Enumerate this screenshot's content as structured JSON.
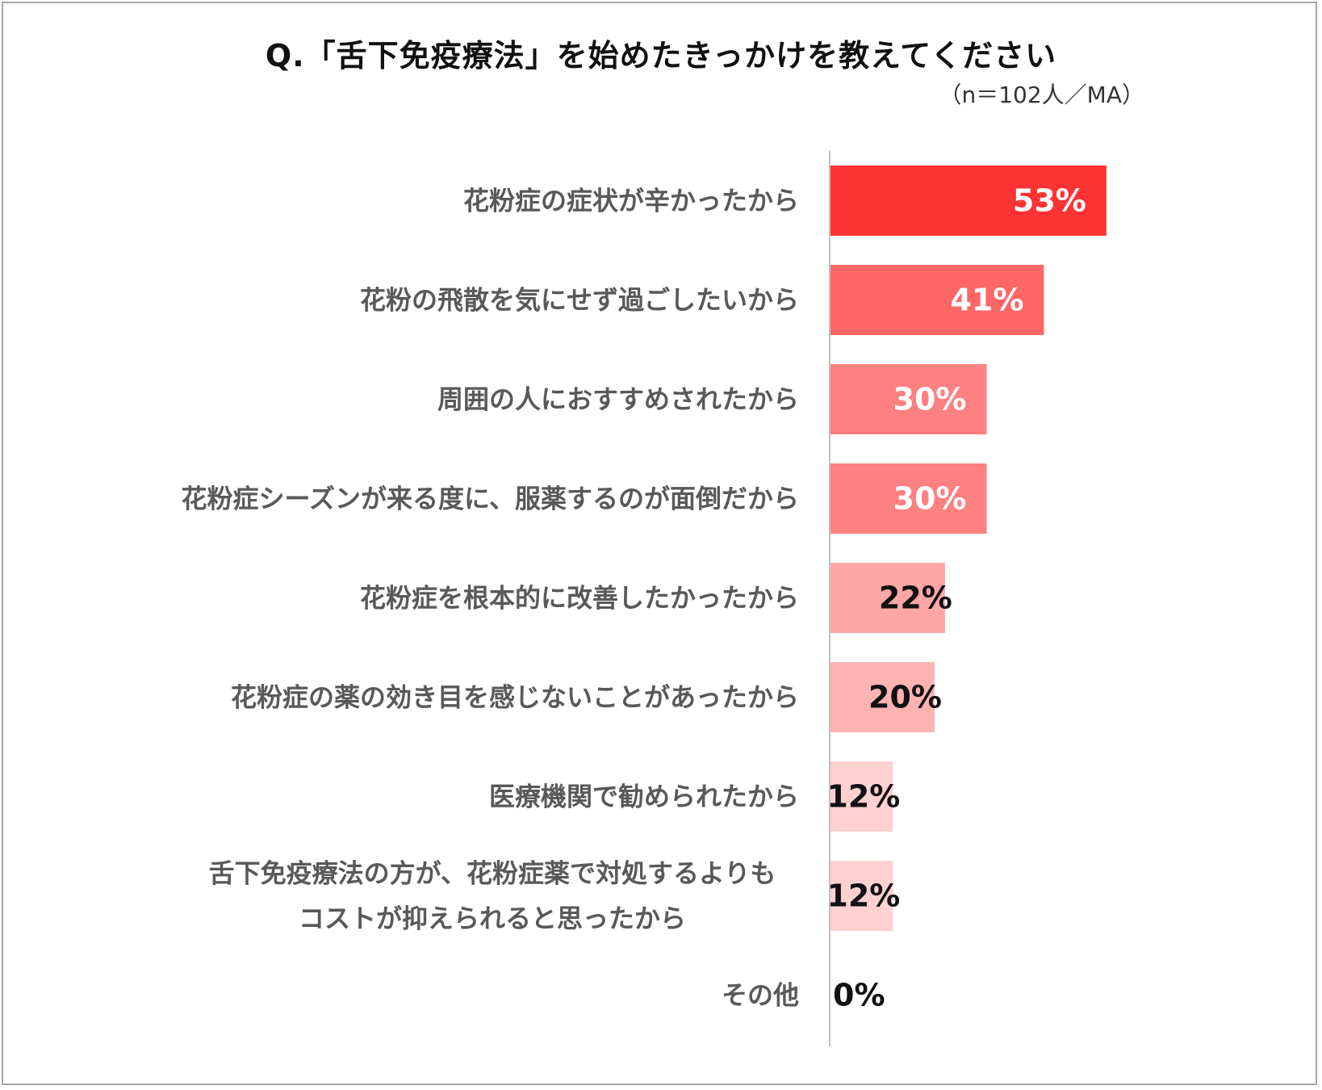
{
  "chart_data": {
    "type": "bar",
    "orientation": "horizontal",
    "title": "Q.「舌下免疫療法」を始めたきっかけを教えてください",
    "subtitle": "（n＝102人／MA）",
    "unit": "%",
    "xlim": [
      0,
      100
    ],
    "grid": false,
    "categories": [
      [
        "花粉症の症状が辛かったから"
      ],
      [
        "花粉の飛散を気にせず過ごしたいから"
      ],
      [
        "周囲の人におすすめされたから"
      ],
      [
        "花粉症シーズンが来る度に、服薬するのが面倒だから"
      ],
      [
        "花粉症を根本的に改善したかったから"
      ],
      [
        "花粉症の薬の効き目を感じないことがあったから"
      ],
      [
        "医療機関で勧められたから"
      ],
      [
        "舌下免疫療法の方が、花粉症薬で対処するよりも",
        "コストが抑えられると思ったから"
      ],
      [
        "その他"
      ]
    ],
    "values": [
      53,
      41,
      30,
      30,
      22,
      20,
      12,
      12,
      0
    ],
    "value_labels": [
      "53%",
      "41%",
      "30%",
      "30%",
      "22%",
      "20%",
      "12%",
      "12%",
      "0%"
    ],
    "colors": [
      "#ff3333",
      "#ff6666",
      "#ff8080",
      "#ff8080",
      "#ffa6a6",
      "#ffb3b3",
      "#ffd1d1",
      "#ffd1d1",
      "#ffd1d1"
    ],
    "label_colors": [
      "#ffffff",
      "#ffffff",
      "#ffffff",
      "#ffffff",
      "#111111",
      "#111111",
      "#111111",
      "#111111",
      "#111111"
    ],
    "axis_color": "#bfbfbf"
  }
}
